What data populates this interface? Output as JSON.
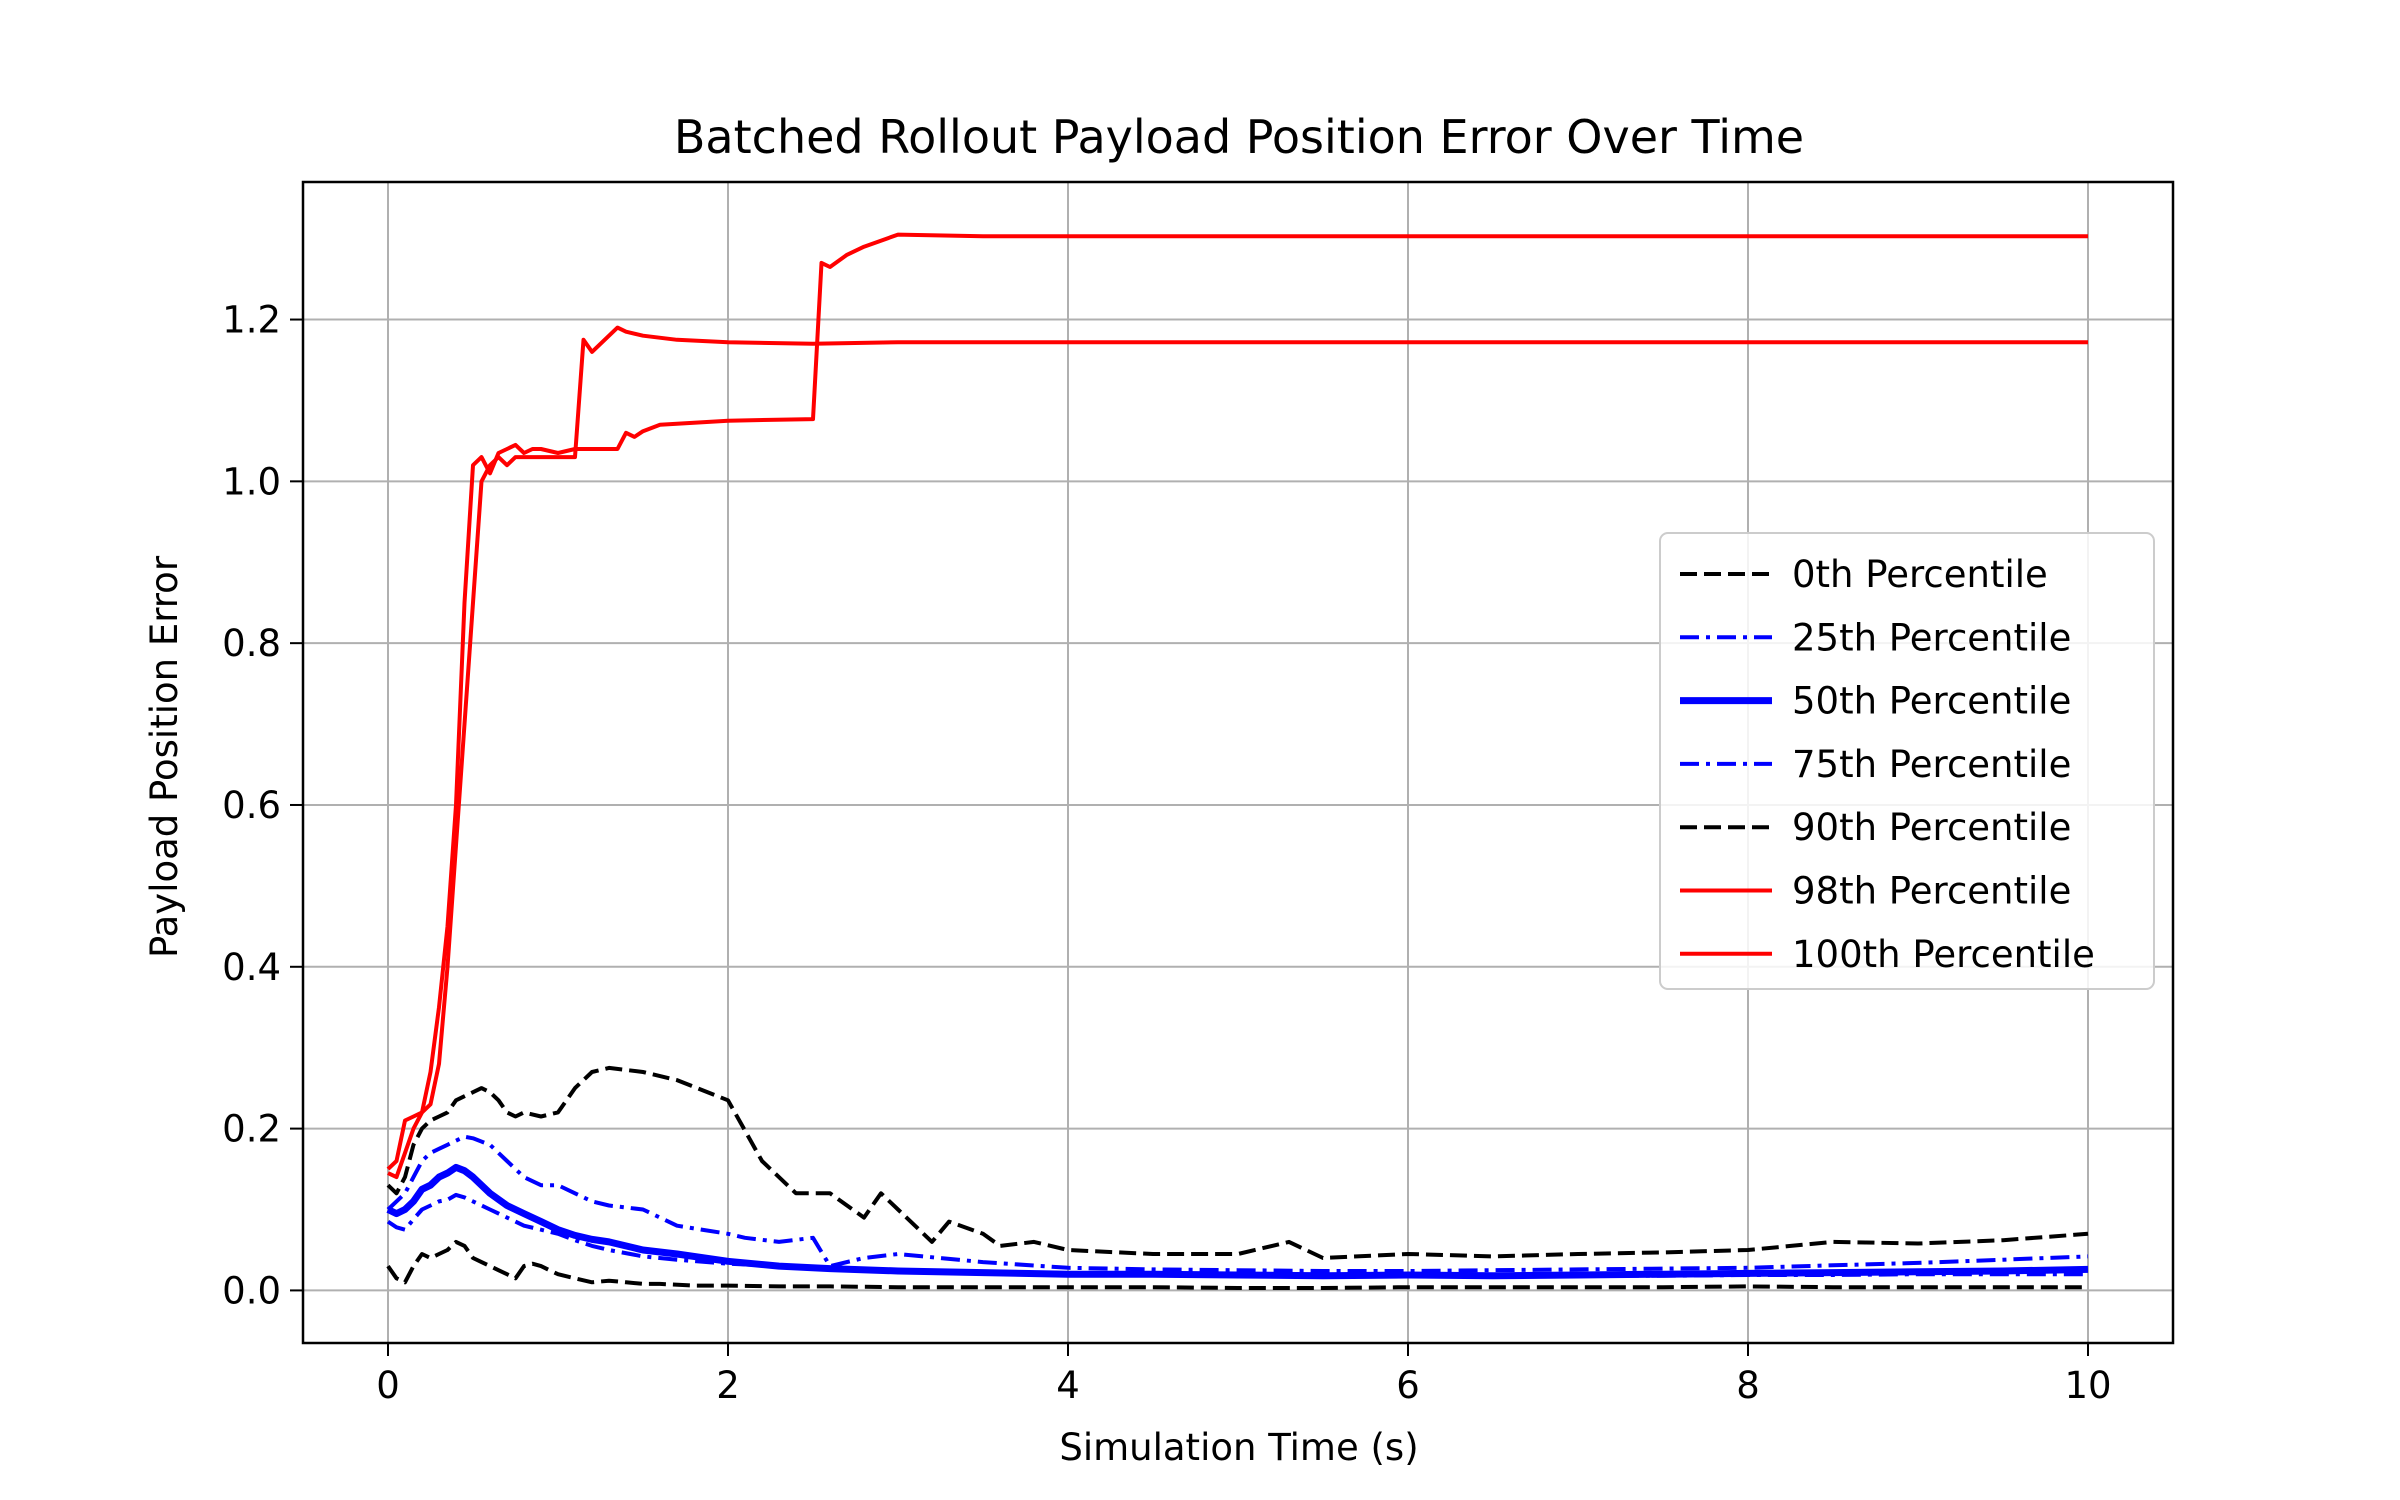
{
  "chart_data": {
    "type": "line",
    "title": "Batched Rollout Payload Position Error Over Time",
    "xlabel": "Simulation Time (s)",
    "ylabel": "Payload Position Error",
    "xlim": [
      -0.5,
      10.5
    ],
    "ylim": [
      -0.065,
      1.37
    ],
    "xticks": [
      0,
      2,
      4,
      6,
      8,
      10
    ],
    "xtick_labels": [
      "0",
      "2",
      "4",
      "6",
      "8",
      "10"
    ],
    "yticks": [
      0.0,
      0.2,
      0.4,
      0.6,
      0.8,
      1.0,
      1.2
    ],
    "ytick_labels": [
      "0.0",
      "0.2",
      "0.4",
      "0.6",
      "0.8",
      "1.0",
      "1.2"
    ],
    "grid": true,
    "legend_position": "center-right",
    "series": [
      {
        "name": "0th Percentile",
        "color": "#000000",
        "style": "dashed",
        "width": "normal",
        "x": [
          0,
          0.05,
          0.1,
          0.15,
          0.2,
          0.25,
          0.3,
          0.35,
          0.4,
          0.45,
          0.5,
          0.55,
          0.6,
          0.65,
          0.7,
          0.75,
          0.8,
          0.85,
          0.9,
          0.95,
          1.0,
          1.1,
          1.2,
          1.3,
          1.4,
          1.5,
          1.6,
          1.8,
          2.0,
          2.3,
          2.6,
          3.0,
          3.5,
          4.0,
          4.5,
          5.0,
          5.5,
          6.0,
          6.5,
          7.0,
          7.5,
          8.0,
          8.5,
          9.0,
          9.5,
          10.0
        ],
        "y": [
          0.03,
          0.015,
          0.01,
          0.03,
          0.045,
          0.04,
          0.045,
          0.05,
          0.06,
          0.055,
          0.04,
          0.035,
          0.03,
          0.025,
          0.02,
          0.015,
          0.03,
          0.033,
          0.03,
          0.025,
          0.02,
          0.015,
          0.01,
          0.012,
          0.01,
          0.008,
          0.008,
          0.006,
          0.006,
          0.005,
          0.005,
          0.004,
          0.004,
          0.004,
          0.004,
          0.003,
          0.003,
          0.004,
          0.004,
          0.004,
          0.004,
          0.005,
          0.004,
          0.004,
          0.004,
          0.004
        ]
      },
      {
        "name": "25th Percentile",
        "color": "#0000ff",
        "style": "dashdot",
        "width": "normal",
        "x": [
          0,
          0.05,
          0.1,
          0.15,
          0.2,
          0.25,
          0.3,
          0.35,
          0.4,
          0.45,
          0.5,
          0.6,
          0.7,
          0.8,
          0.9,
          1.0,
          1.1,
          1.2,
          1.3,
          1.5,
          1.7,
          2.0,
          2.3,
          2.6,
          3.0,
          3.5,
          4.0,
          4.5,
          5.0,
          5.5,
          6.0,
          6.5,
          7.0,
          7.5,
          8.0,
          8.5,
          9.0,
          9.5,
          10.0
        ],
        "y": [
          0.085,
          0.078,
          0.075,
          0.088,
          0.1,
          0.105,
          0.11,
          0.112,
          0.118,
          0.115,
          0.11,
          0.1,
          0.09,
          0.08,
          0.075,
          0.07,
          0.062,
          0.055,
          0.05,
          0.042,
          0.038,
          0.033,
          0.03,
          0.027,
          0.025,
          0.022,
          0.02,
          0.019,
          0.018,
          0.018,
          0.018,
          0.017,
          0.018,
          0.018,
          0.019,
          0.019,
          0.02,
          0.02,
          0.02
        ]
      },
      {
        "name": "50th Percentile",
        "color": "#0000ff",
        "style": "solid",
        "width": "thick",
        "x": [
          0,
          0.05,
          0.1,
          0.15,
          0.2,
          0.25,
          0.3,
          0.35,
          0.4,
          0.45,
          0.5,
          0.6,
          0.7,
          0.8,
          0.9,
          1.0,
          1.1,
          1.2,
          1.3,
          1.5,
          1.7,
          2.0,
          2.3,
          2.6,
          3.0,
          3.5,
          4.0,
          4.5,
          5.0,
          5.5,
          6.0,
          6.5,
          7.0,
          7.5,
          8.0,
          8.5,
          9.0,
          9.5,
          10.0
        ],
        "y": [
          0.1,
          0.095,
          0.1,
          0.11,
          0.125,
          0.13,
          0.14,
          0.145,
          0.152,
          0.148,
          0.14,
          0.12,
          0.105,
          0.095,
          0.085,
          0.075,
          0.068,
          0.063,
          0.06,
          0.05,
          0.045,
          0.036,
          0.03,
          0.027,
          0.024,
          0.022,
          0.02,
          0.02,
          0.019,
          0.018,
          0.019,
          0.018,
          0.019,
          0.02,
          0.021,
          0.022,
          0.023,
          0.024,
          0.026
        ]
      },
      {
        "name": "75th Percentile",
        "color": "#0000ff",
        "style": "dashdot",
        "width": "normal",
        "x": [
          0,
          0.05,
          0.1,
          0.15,
          0.2,
          0.25,
          0.3,
          0.35,
          0.4,
          0.45,
          0.5,
          0.6,
          0.7,
          0.8,
          0.9,
          1.0,
          1.1,
          1.2,
          1.3,
          1.5,
          1.7,
          2.0,
          2.1,
          2.3,
          2.5,
          2.6,
          2.8,
          3.0,
          3.5,
          4.0,
          4.5,
          5.0,
          5.5,
          6.0,
          6.5,
          7.0,
          7.5,
          8.0,
          8.5,
          9.0,
          9.5,
          10.0
        ],
        "y": [
          0.1,
          0.11,
          0.12,
          0.14,
          0.16,
          0.17,
          0.175,
          0.18,
          0.185,
          0.19,
          0.188,
          0.18,
          0.16,
          0.14,
          0.13,
          0.13,
          0.12,
          0.11,
          0.105,
          0.1,
          0.08,
          0.07,
          0.065,
          0.06,
          0.065,
          0.03,
          0.04,
          0.045,
          0.035,
          0.028,
          0.026,
          0.025,
          0.024,
          0.024,
          0.025,
          0.026,
          0.027,
          0.028,
          0.031,
          0.034,
          0.038,
          0.042
        ]
      },
      {
        "name": "90th Percentile",
        "color": "#000000",
        "style": "dashed",
        "width": "normal",
        "x": [
          0,
          0.05,
          0.1,
          0.15,
          0.2,
          0.25,
          0.3,
          0.35,
          0.4,
          0.45,
          0.5,
          0.55,
          0.6,
          0.65,
          0.7,
          0.75,
          0.8,
          0.9,
          1.0,
          1.1,
          1.2,
          1.3,
          1.5,
          1.7,
          2.0,
          2.2,
          2.4,
          2.6,
          2.8,
          2.9,
          3.0,
          3.2,
          3.3,
          3.5,
          3.6,
          3.8,
          4.0,
          4.5,
          5.0,
          5.3,
          5.5,
          6.0,
          6.5,
          7.0,
          7.5,
          8.0,
          8.5,
          9.0,
          9.5,
          10.0
        ],
        "y": [
          0.13,
          0.12,
          0.14,
          0.18,
          0.2,
          0.21,
          0.215,
          0.22,
          0.235,
          0.24,
          0.245,
          0.25,
          0.245,
          0.235,
          0.22,
          0.215,
          0.22,
          0.215,
          0.22,
          0.25,
          0.27,
          0.275,
          0.27,
          0.26,
          0.235,
          0.16,
          0.12,
          0.12,
          0.09,
          0.12,
          0.1,
          0.06,
          0.085,
          0.07,
          0.055,
          0.06,
          0.05,
          0.045,
          0.045,
          0.06,
          0.04,
          0.045,
          0.042,
          0.045,
          0.047,
          0.05,
          0.06,
          0.058,
          0.062,
          0.07
        ]
      },
      {
        "name": "98th Percentile",
        "color": "#ff0000",
        "style": "solid",
        "width": "normal",
        "x": [
          0,
          0.05,
          0.1,
          0.15,
          0.2,
          0.25,
          0.3,
          0.35,
          0.4,
          0.45,
          0.5,
          0.55,
          0.6,
          0.65,
          0.7,
          0.75,
          0.8,
          0.9,
          1.0,
          1.1,
          1.15,
          1.2,
          1.25,
          1.3,
          1.35,
          1.4,
          1.5,
          1.7,
          2.0,
          2.5,
          3.0,
          4.0,
          6.0,
          8.0,
          10.0
        ],
        "y": [
          0.145,
          0.14,
          0.17,
          0.2,
          0.22,
          0.23,
          0.28,
          0.4,
          0.55,
          0.7,
          0.85,
          1.0,
          1.02,
          1.03,
          1.02,
          1.03,
          1.03,
          1.03,
          1.03,
          1.03,
          1.175,
          1.16,
          1.17,
          1.18,
          1.19,
          1.185,
          1.18,
          1.175,
          1.172,
          1.17,
          1.172,
          1.172,
          1.172,
          1.172,
          1.172
        ]
      },
      {
        "name": "100th Percentile",
        "color": "#ff0000",
        "style": "solid",
        "width": "normal",
        "x": [
          0,
          0.05,
          0.1,
          0.15,
          0.2,
          0.25,
          0.3,
          0.35,
          0.4,
          0.45,
          0.5,
          0.55,
          0.6,
          0.65,
          0.7,
          0.75,
          0.8,
          0.85,
          0.9,
          1.0,
          1.1,
          1.2,
          1.35,
          1.4,
          1.45,
          1.5,
          1.6,
          2.0,
          2.5,
          2.55,
          2.6,
          2.7,
          2.8,
          3.0,
          3.5,
          4.0,
          6.0,
          8.0,
          10.0
        ],
        "y": [
          0.15,
          0.16,
          0.21,
          0.215,
          0.22,
          0.27,
          0.35,
          0.45,
          0.6,
          0.85,
          1.02,
          1.03,
          1.01,
          1.035,
          1.04,
          1.045,
          1.035,
          1.04,
          1.04,
          1.035,
          1.04,
          1.04,
          1.04,
          1.06,
          1.055,
          1.062,
          1.07,
          1.075,
          1.077,
          1.27,
          1.265,
          1.28,
          1.29,
          1.305,
          1.303,
          1.303,
          1.303,
          1.303,
          1.303
        ]
      }
    ]
  }
}
